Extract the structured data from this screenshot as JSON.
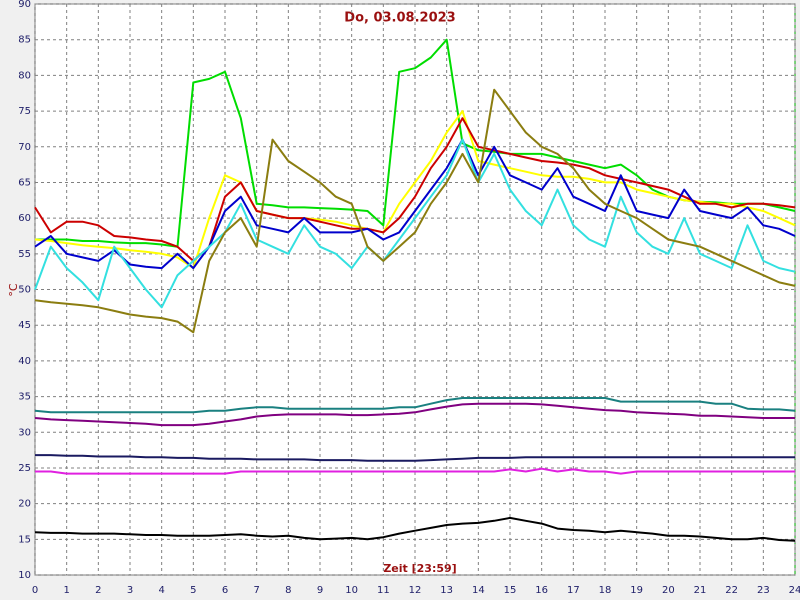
{
  "chart_data": {
    "type": "line",
    "title": "Do, 03.08.2023",
    "x_label": "Zeit [23:59]",
    "y_label": "°C",
    "grid": true,
    "xlim": [
      0,
      24
    ],
    "ylim": [
      10,
      90
    ],
    "xticks": [
      0,
      1,
      2,
      3,
      4,
      5,
      6,
      7,
      8,
      9,
      10,
      11,
      12,
      13,
      14,
      15,
      16,
      17,
      18,
      19,
      20,
      21,
      22,
      23,
      24
    ],
    "yticks": [
      10,
      15,
      20,
      25,
      30,
      35,
      40,
      45,
      50,
      55,
      60,
      65,
      70,
      75,
      80,
      85,
      90
    ],
    "x": [
      0,
      0.5,
      1,
      1.5,
      2,
      2.5,
      3,
      3.5,
      4,
      4.5,
      5,
      5.5,
      6,
      6.5,
      7,
      7.5,
      8,
      8.5,
      9,
      9.5,
      10,
      10.5,
      11,
      11.5,
      12,
      12.5,
      13,
      13.5,
      14,
      14.5,
      15,
      15.5,
      16,
      16.5,
      17,
      17.5,
      18,
      18.5,
      19,
      19.5,
      20,
      20.5,
      21,
      21.5,
      22,
      22.5,
      23,
      23.5,
      24
    ],
    "series": [
      {
        "color": "#00dd00",
        "values": [
          57,
          57,
          57,
          56.8,
          56.8,
          56.6,
          56.5,
          56.5,
          56.3,
          56,
          79,
          79.5,
          80.5,
          74,
          62,
          61.8,
          61.5,
          61.5,
          61.4,
          61.3,
          61.2,
          61,
          59,
          80.5,
          81,
          82.5,
          85,
          70.5,
          69.5,
          69.3,
          69,
          69,
          69,
          68.5,
          68,
          67.5,
          67,
          67.5,
          66,
          64,
          63,
          62.5,
          62.3,
          62.2,
          62,
          62,
          62,
          61.5,
          61
        ]
      },
      {
        "color": "#ffff00",
        "values": [
          57,
          56.8,
          56.5,
          56.2,
          56,
          55.8,
          55.5,
          55.3,
          55,
          54.5,
          53,
          60,
          66,
          65,
          61,
          60.5,
          60,
          60,
          59.8,
          59.5,
          59,
          58.5,
          58,
          62,
          65,
          68,
          72,
          75,
          68,
          67.5,
          67,
          66.5,
          66,
          65.8,
          65.8,
          65.5,
          65,
          65,
          64,
          63.5,
          63,
          62.5,
          62.3,
          62,
          62,
          61.5,
          61,
          60,
          59
        ]
      },
      {
        "color": "#cc0000",
        "values": [
          61.5,
          58,
          59.5,
          59.5,
          59,
          57.5,
          57.3,
          57,
          56.8,
          56,
          54,
          56,
          63,
          65,
          61,
          60.5,
          60,
          60,
          59.5,
          59,
          58.5,
          58.5,
          58,
          60,
          63,
          67,
          70,
          74,
          70,
          69.5,
          69,
          68.5,
          68,
          67.8,
          67.5,
          67,
          66,
          65.5,
          65,
          64.5,
          64,
          63,
          62,
          62,
          61.5,
          62,
          62,
          61.8,
          61.5
        ]
      },
      {
        "color": "#0000cc",
        "values": [
          56,
          57.5,
          55,
          54.5,
          54,
          55.5,
          53.5,
          53.2,
          53,
          55,
          53,
          56,
          61,
          63,
          59,
          58.5,
          58,
          60,
          58,
          58,
          58,
          58.5,
          57,
          58,
          61,
          64,
          67,
          71,
          66,
          70,
          66,
          65,
          64,
          67,
          63,
          62,
          61,
          66,
          61,
          60.5,
          60,
          64,
          61,
          60.5,
          60,
          61.5,
          59,
          58.5,
          57.5
        ]
      },
      {
        "color": "#33e0e0",
        "values": [
          50,
          56,
          53,
          51,
          48.5,
          56,
          53,
          50,
          47.5,
          52,
          54,
          56,
          58,
          62,
          57,
          56,
          55,
          59,
          56,
          55,
          53,
          56,
          54,
          57,
          60,
          63,
          66,
          71,
          65,
          69,
          64,
          61,
          59,
          64,
          59,
          57,
          56,
          63,
          58,
          56,
          55,
          60,
          55,
          54,
          53,
          59,
          54,
          53,
          52.5
        ]
      },
      {
        "color": "#8b7d10",
        "values": [
          48.5,
          48.2,
          48,
          47.8,
          47.5,
          47,
          46.5,
          46.2,
          46,
          45.5,
          44,
          54,
          58,
          60,
          56,
          71,
          68,
          66.5,
          65,
          63,
          62,
          56,
          54,
          56,
          58,
          62,
          65,
          69,
          65,
          78,
          75,
          72,
          70,
          69,
          67,
          64,
          62,
          61,
          60,
          58.5,
          57,
          56.5,
          56,
          55,
          54,
          53,
          52,
          51,
          50.5
        ]
      },
      {
        "color": "#1a8080",
        "values": [
          33,
          32.8,
          32.8,
          32.8,
          32.8,
          32.8,
          32.8,
          32.8,
          32.8,
          32.8,
          32.8,
          33,
          33,
          33.3,
          33.5,
          33.5,
          33.3,
          33.3,
          33.3,
          33.3,
          33.3,
          33.3,
          33.3,
          33.5,
          33.5,
          34,
          34.5,
          34.8,
          34.8,
          34.8,
          34.8,
          34.8,
          34.8,
          34.8,
          34.8,
          34.8,
          34.8,
          34.3,
          34.3,
          34.3,
          34.3,
          34.3,
          34.3,
          34,
          34,
          33.3,
          33.2,
          33.2,
          33
        ]
      },
      {
        "color": "#800080",
        "values": [
          32,
          31.8,
          31.7,
          31.6,
          31.5,
          31.4,
          31.3,
          31.2,
          31,
          31,
          31,
          31.2,
          31.5,
          31.8,
          32.2,
          32.4,
          32.5,
          32.5,
          32.5,
          32.5,
          32.4,
          32.4,
          32.5,
          32.6,
          32.8,
          33.2,
          33.6,
          33.9,
          34,
          34,
          34,
          34,
          33.9,
          33.7,
          33.5,
          33.3,
          33.1,
          33,
          32.8,
          32.7,
          32.6,
          32.5,
          32.3,
          32.3,
          32.2,
          32.1,
          32,
          32,
          32
        ]
      },
      {
        "color": "#1a1a60",
        "values": [
          26.8,
          26.8,
          26.7,
          26.7,
          26.6,
          26.6,
          26.6,
          26.5,
          26.5,
          26.4,
          26.4,
          26.3,
          26.3,
          26.3,
          26.2,
          26.2,
          26.2,
          26.2,
          26.1,
          26.1,
          26.1,
          26,
          26,
          26,
          26,
          26.1,
          26.2,
          26.3,
          26.4,
          26.4,
          26.4,
          26.5,
          26.5,
          26.5,
          26.5,
          26.5,
          26.5,
          26.5,
          26.5,
          26.5,
          26.5,
          26.5,
          26.5,
          26.5,
          26.5,
          26.5,
          26.5,
          26.5,
          26.5
        ]
      },
      {
        "color": "#e020e0",
        "values": [
          24.5,
          24.5,
          24.2,
          24.2,
          24.2,
          24.2,
          24.2,
          24.2,
          24.2,
          24.2,
          24.2,
          24.2,
          24.2,
          24.5,
          24.5,
          24.5,
          24.5,
          24.5,
          24.5,
          24.5,
          24.5,
          24.5,
          24.5,
          24.5,
          24.5,
          24.5,
          24.5,
          24.5,
          24.5,
          24.5,
          24.8,
          24.5,
          24.9,
          24.5,
          24.8,
          24.5,
          24.5,
          24.2,
          24.5,
          24.5,
          24.5,
          24.5,
          24.5,
          24.5,
          24.5,
          24.5,
          24.5,
          24.5,
          24.5
        ]
      },
      {
        "color": "#000000",
        "values": [
          16,
          15.9,
          15.9,
          15.8,
          15.8,
          15.8,
          15.7,
          15.6,
          15.6,
          15.5,
          15.5,
          15.5,
          15.6,
          15.7,
          15.5,
          15.4,
          15.5,
          15.2,
          15,
          15.1,
          15.2,
          15,
          15.3,
          15.8,
          16.2,
          16.6,
          17,
          17.2,
          17.3,
          17.6,
          18,
          17.6,
          17.2,
          16.5,
          16.3,
          16.2,
          16,
          16.2,
          16,
          15.8,
          15.5,
          15.5,
          15.4,
          15.2,
          15,
          15,
          15.2,
          14.9,
          14.8
        ]
      }
    ]
  }
}
